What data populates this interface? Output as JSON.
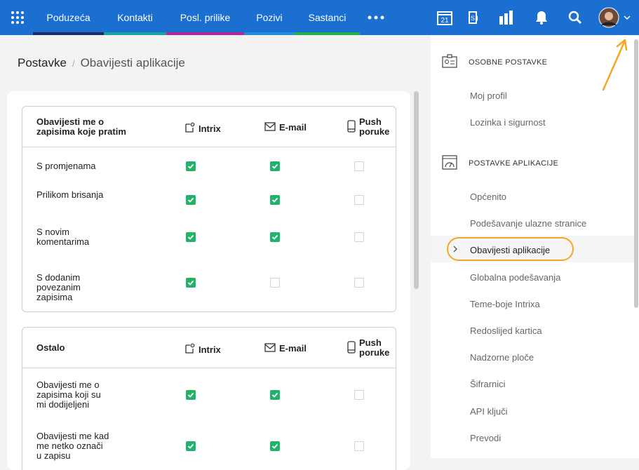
{
  "nav": {
    "items": [
      "Poduzeća",
      "Kontakti",
      "Posl. prilike",
      "Pozivi",
      "Sastanci"
    ],
    "calendar_day": "21"
  },
  "breadcrumb": {
    "root": "Postavke",
    "current": "Obavijesti aplikacije"
  },
  "tables": [
    {
      "header": "Obavijesti me o zapisima koje pratim",
      "columns": [
        "Intrix",
        "E-mail",
        "Push poruke"
      ],
      "rows": [
        {
          "label": "S promjenama",
          "checks": [
            true,
            true,
            false
          ]
        },
        {
          "label": "Prilikom brisanja",
          "checks": [
            true,
            true,
            false
          ]
        },
        {
          "label": "S novim komentarima",
          "checks": [
            true,
            true,
            false
          ]
        },
        {
          "label": "S dodanim povezanim zapisima",
          "checks": [
            true,
            false,
            false
          ]
        }
      ]
    },
    {
      "header": "Ostalo",
      "columns": [
        "Intrix",
        "E-mail",
        "Push poruke"
      ],
      "rows": [
        {
          "label": "Obavijesti me o zapisima koji su mi dodijeljeni",
          "checks": [
            true,
            true,
            false
          ]
        },
        {
          "label": "Obavijesti me kad me netko označi u zapisu",
          "checks": [
            true,
            true,
            false
          ]
        }
      ]
    }
  ],
  "sidebar": {
    "sections": [
      {
        "title": "OSOBNE POSTAVKE",
        "items": [
          "Moj profil",
          "Lozinka i sigurnost"
        ]
      },
      {
        "title": "POSTAVKE APLIKACIJE",
        "items": [
          "Općenito",
          "Podešavanje ulazne stranice",
          "Obavijesti aplikacije",
          "Globalna podešavanja",
          "Teme-boje Intrixa",
          "Redoslijed kartica",
          "Nadzorne ploče",
          "Šifrarnici",
          "API ključi",
          "Prevodi"
        ]
      }
    ],
    "active": "Obavijesti aplikacije"
  }
}
